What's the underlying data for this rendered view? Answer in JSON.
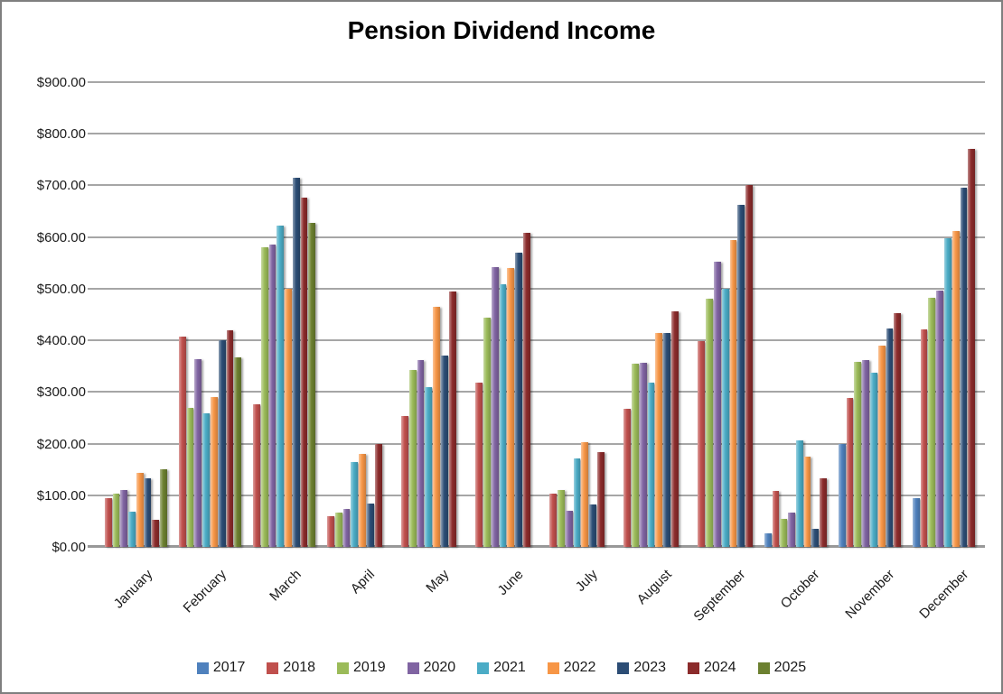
{
  "window": {
    "background": "#ffffff",
    "border_color": "#7f7f7f",
    "gridline_color": "#a6a6a6",
    "axis_line_color": "#989898",
    "text_color": "#1a1a1a"
  },
  "chart_data": {
    "type": "bar",
    "title": "Pension Dividend Income",
    "xlabel": "",
    "ylabel": "",
    "ylim": [
      0,
      900
    ],
    "ytick_step": 100,
    "ytick_labels": [
      "$0.00",
      "$100.00",
      "$200.00",
      "$300.00",
      "$400.00",
      "$500.00",
      "$600.00",
      "$700.00",
      "$800.00",
      "$900.00"
    ],
    "grid": "horizontal-major",
    "legend_position": "bottom",
    "categories": [
      "January",
      "February",
      "March",
      "April",
      "May",
      "June",
      "July",
      "August",
      "September",
      "October",
      "November",
      "December"
    ],
    "series": [
      {
        "name": "2017",
        "color": "#4F81BD",
        "values": [
          null,
          null,
          null,
          null,
          null,
          null,
          null,
          null,
          null,
          27,
          200,
          95
        ]
      },
      {
        "name": "2018",
        "color": "#C0504D",
        "values": [
          95,
          407,
          277,
          60,
          253,
          318,
          103,
          268,
          399,
          108,
          288,
          422
        ]
      },
      {
        "name": "2019",
        "color": "#9BBB59",
        "values": [
          103,
          270,
          580,
          66,
          343,
          444,
          110,
          354,
          480,
          55,
          359,
          482
        ]
      },
      {
        "name": "2020",
        "color": "#8064A2",
        "values": [
          110,
          363,
          586,
          73,
          362,
          541,
          70,
          356,
          552,
          66,
          362,
          497
        ]
      },
      {
        "name": "2021",
        "color": "#4BACC6",
        "values": [
          68,
          258,
          622,
          165,
          310,
          509,
          172,
          318,
          500,
          206,
          338,
          597
        ]
      },
      {
        "name": "2022",
        "color": "#F79646",
        "values": [
          143,
          290,
          500,
          180,
          465,
          540,
          203,
          415,
          595,
          175,
          389,
          612
        ]
      },
      {
        "name": "2023",
        "color": "#2C4D75",
        "values": [
          132,
          400,
          715,
          84,
          370,
          569,
          83,
          414,
          662,
          35,
          423,
          696
        ]
      },
      {
        "name": "2024",
        "color": "#8B2B2B",
        "values": [
          53,
          420,
          677,
          200,
          494,
          608,
          183,
          456,
          701,
          133,
          452,
          770
        ]
      },
      {
        "name": "2025",
        "color": "#6C8030",
        "values": [
          150,
          367,
          628,
          null,
          null,
          null,
          null,
          null,
          null,
          null,
          null,
          null
        ]
      }
    ]
  }
}
